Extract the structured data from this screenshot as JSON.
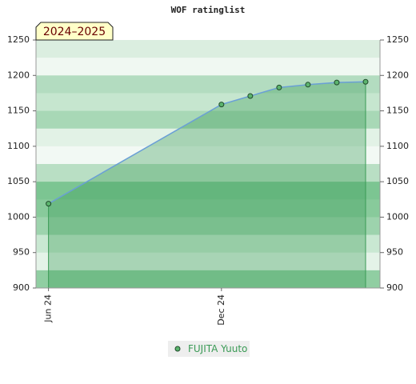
{
  "chart_data": {
    "type": "area",
    "title": "WOF ratinglist",
    "annotation": "2024–2025",
    "x": [
      "2024-06",
      "2024-12",
      "2025-01",
      "2025-02",
      "2025-03",
      "2025-04",
      "2025-05"
    ],
    "xlim": [
      "2024-05-18",
      "2025-05-16"
    ],
    "xticks": [
      {
        "value": "2024-06",
        "label": "Jun 24"
      },
      {
        "value": "2024-12",
        "label": "Dec 24"
      }
    ],
    "series": [
      {
        "name": "FUJITA Yuuto",
        "color": "#3a9a55",
        "values": [
          1019,
          1159,
          1171,
          1183,
          1187,
          1190,
          1191
        ]
      }
    ],
    "ylim": [
      900,
      1250
    ],
    "yticks": [
      900,
      950,
      1000,
      1050,
      1100,
      1150,
      1200,
      1250
    ],
    "y2lim": [
      900,
      1250
    ],
    "y2ticks": [
      900,
      950,
      1000,
      1050,
      1100,
      1150,
      1200,
      1250
    ],
    "legend": "bottom"
  }
}
